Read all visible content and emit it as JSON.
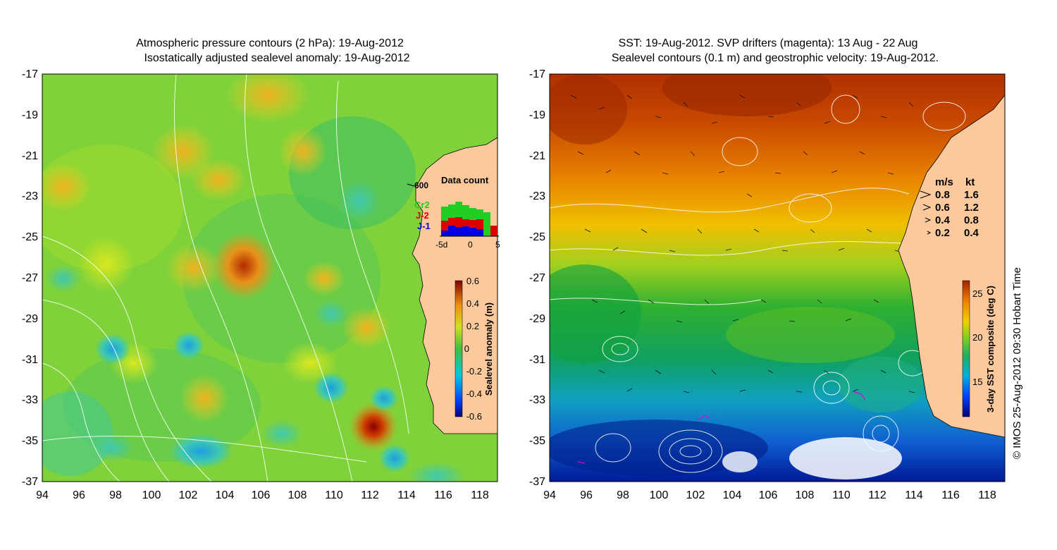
{
  "left_panel": {
    "title_line1": "Atmospheric pressure contours (2 hPa): 19-Aug-2012",
    "title_line2": "Isostatically adjusted sealevel anomaly: 19-Aug-2012",
    "x_ticks": [
      "94",
      "96",
      "98",
      "100",
      "102",
      "104",
      "106",
      "108",
      "110",
      "112",
      "114",
      "116",
      "118"
    ],
    "y_ticks": [
      "-17",
      "-19",
      "-21",
      "-23",
      "-25",
      "-27",
      "-29",
      "-31",
      "-33",
      "-35",
      "-37"
    ],
    "colorbar": {
      "label": "Sealevel anomaly (m)",
      "ticks": [
        "0.6",
        "0.4",
        "0.2",
        "0",
        "-0.2",
        "-0.4",
        "-0.6"
      ]
    },
    "inset": {
      "title": "Data count",
      "max_label": "600",
      "legend": [
        {
          "label": "Cr2",
          "color": "#22cc22"
        },
        {
          "label": "J-2",
          "color": "#dd0000"
        },
        {
          "label": "J-1",
          "color": "#0000dd"
        }
      ],
      "x_ticks": [
        "-5d",
        "0",
        "5"
      ]
    }
  },
  "right_panel": {
    "title_line1": "SST: 19-Aug-2012. SVP drifters (magenta): 13 Aug - 22 Aug",
    "title_line2": "Sealevel contours (0.1 m) and geostrophic velocity: 19-Aug-2012.",
    "x_ticks": [
      "94",
      "96",
      "98",
      "100",
      "102",
      "104",
      "106",
      "108",
      "110",
      "112",
      "114",
      "116",
      "118"
    ],
    "y_ticks": [
      "-17",
      "-19",
      "-21",
      "-23",
      "-25",
      "-27",
      "-29",
      "-31",
      "-33",
      "-35",
      "-37"
    ],
    "colorbar": {
      "label": "3-day SST composite (deg C)",
      "ticks": [
        "25",
        "20",
        "15"
      ]
    },
    "speed_legend": {
      "header_ms": "m/s",
      "header_kt": "kt",
      "rows": [
        {
          "ms": "0.8",
          "kt": "1.6"
        },
        {
          "ms": "0.6",
          "kt": "1.2"
        },
        {
          "ms": "0.4",
          "kt": "0.8"
        },
        {
          "ms": "0.2",
          "kt": "0.4"
        }
      ]
    }
  },
  "copyright": "© IMOS 25-Aug-2012 09:30 Hobart Time",
  "colors": {
    "land": "#fbc99c",
    "ssh_high": "#8b0000",
    "ssh_low": "#00007f",
    "sst_warm": "#b33a00",
    "sst_cold": "#001a99"
  }
}
